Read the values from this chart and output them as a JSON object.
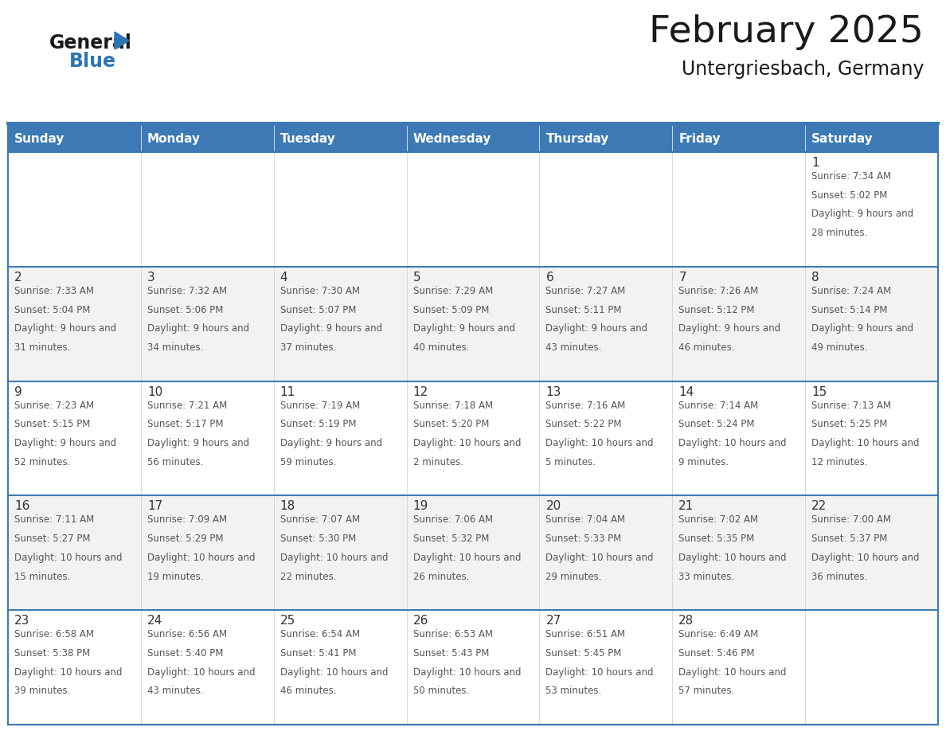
{
  "title": "February 2025",
  "subtitle": "Untergriesbach, Germany",
  "header_bg": "#3d7ab5",
  "header_text_color": "#ffffff",
  "cell_bg_white": "#ffffff",
  "cell_bg_gray": "#f2f2f2",
  "day_number_color": "#333333",
  "day_text_color": "#555555",
  "border_color": "#3d7ab5",
  "grid_line_color": "#cccccc",
  "days_of_week": [
    "Sunday",
    "Monday",
    "Tuesday",
    "Wednesday",
    "Thursday",
    "Friday",
    "Saturday"
  ],
  "weeks": [
    [
      null,
      null,
      null,
      null,
      null,
      null,
      1
    ],
    [
      2,
      3,
      4,
      5,
      6,
      7,
      8
    ],
    [
      9,
      10,
      11,
      12,
      13,
      14,
      15
    ],
    [
      16,
      17,
      18,
      19,
      20,
      21,
      22
    ],
    [
      23,
      24,
      25,
      26,
      27,
      28,
      null
    ]
  ],
  "day_data": {
    "1": {
      "sunrise": "7:34 AM",
      "sunset": "5:02 PM",
      "daylight": "9 hours and 28 minutes"
    },
    "2": {
      "sunrise": "7:33 AM",
      "sunset": "5:04 PM",
      "daylight": "9 hours and 31 minutes"
    },
    "3": {
      "sunrise": "7:32 AM",
      "sunset": "5:06 PM",
      "daylight": "9 hours and 34 minutes"
    },
    "4": {
      "sunrise": "7:30 AM",
      "sunset": "5:07 PM",
      "daylight": "9 hours and 37 minutes"
    },
    "5": {
      "sunrise": "7:29 AM",
      "sunset": "5:09 PM",
      "daylight": "9 hours and 40 minutes"
    },
    "6": {
      "sunrise": "7:27 AM",
      "sunset": "5:11 PM",
      "daylight": "9 hours and 43 minutes"
    },
    "7": {
      "sunrise": "7:26 AM",
      "sunset": "5:12 PM",
      "daylight": "9 hours and 46 minutes"
    },
    "8": {
      "sunrise": "7:24 AM",
      "sunset": "5:14 PM",
      "daylight": "9 hours and 49 minutes"
    },
    "9": {
      "sunrise": "7:23 AM",
      "sunset": "5:15 PM",
      "daylight": "9 hours and 52 minutes"
    },
    "10": {
      "sunrise": "7:21 AM",
      "sunset": "5:17 PM",
      "daylight": "9 hours and 56 minutes"
    },
    "11": {
      "sunrise": "7:19 AM",
      "sunset": "5:19 PM",
      "daylight": "9 hours and 59 minutes"
    },
    "12": {
      "sunrise": "7:18 AM",
      "sunset": "5:20 PM",
      "daylight": "10 hours and 2 minutes"
    },
    "13": {
      "sunrise": "7:16 AM",
      "sunset": "5:22 PM",
      "daylight": "10 hours and 5 minutes"
    },
    "14": {
      "sunrise": "7:14 AM",
      "sunset": "5:24 PM",
      "daylight": "10 hours and 9 minutes"
    },
    "15": {
      "sunrise": "7:13 AM",
      "sunset": "5:25 PM",
      "daylight": "10 hours and 12 minutes"
    },
    "16": {
      "sunrise": "7:11 AM",
      "sunset": "5:27 PM",
      "daylight": "10 hours and 15 minutes"
    },
    "17": {
      "sunrise": "7:09 AM",
      "sunset": "5:29 PM",
      "daylight": "10 hours and 19 minutes"
    },
    "18": {
      "sunrise": "7:07 AM",
      "sunset": "5:30 PM",
      "daylight": "10 hours and 22 minutes"
    },
    "19": {
      "sunrise": "7:06 AM",
      "sunset": "5:32 PM",
      "daylight": "10 hours and 26 minutes"
    },
    "20": {
      "sunrise": "7:04 AM",
      "sunset": "5:33 PM",
      "daylight": "10 hours and 29 minutes"
    },
    "21": {
      "sunrise": "7:02 AM",
      "sunset": "5:35 PM",
      "daylight": "10 hours and 33 minutes"
    },
    "22": {
      "sunrise": "7:00 AM",
      "sunset": "5:37 PM",
      "daylight": "10 hours and 36 minutes"
    },
    "23": {
      "sunrise": "6:58 AM",
      "sunset": "5:38 PM",
      "daylight": "10 hours and 39 minutes"
    },
    "24": {
      "sunrise": "6:56 AM",
      "sunset": "5:40 PM",
      "daylight": "10 hours and 43 minutes"
    },
    "25": {
      "sunrise": "6:54 AM",
      "sunset": "5:41 PM",
      "daylight": "10 hours and 46 minutes"
    },
    "26": {
      "sunrise": "6:53 AM",
      "sunset": "5:43 PM",
      "daylight": "10 hours and 50 minutes"
    },
    "27": {
      "sunrise": "6:51 AM",
      "sunset": "5:45 PM",
      "daylight": "10 hours and 53 minutes"
    },
    "28": {
      "sunrise": "6:49 AM",
      "sunset": "5:46 PM",
      "daylight": "10 hours and 57 minutes"
    }
  },
  "logo_general_color": "#1a1a1a",
  "logo_blue_color": "#2e75b6",
  "logo_triangle_color": "#2e75b6"
}
